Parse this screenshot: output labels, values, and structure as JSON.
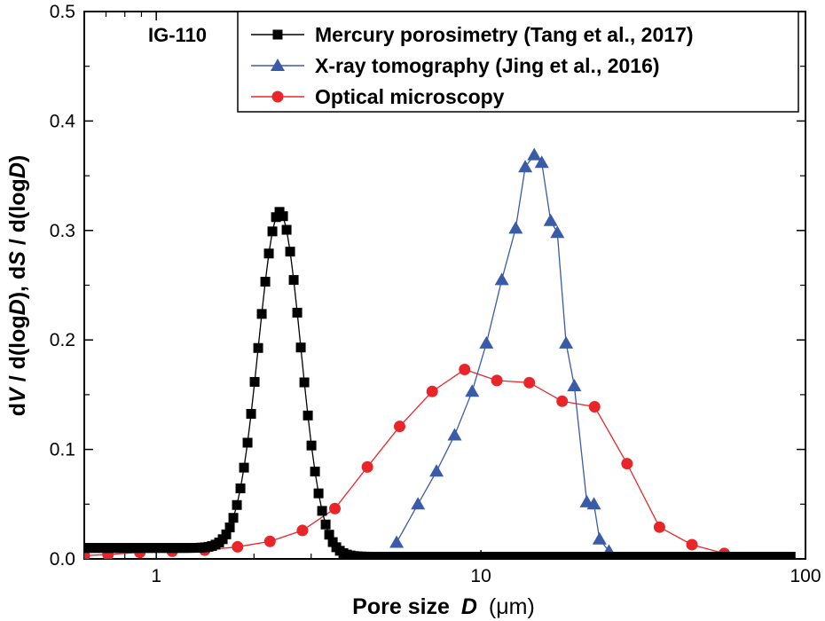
{
  "chart_data": {
    "type": "line",
    "annotation": "IG-110",
    "xlabel": "Pore size",
    "xlabel_var": "D",
    "xlabel_unit": "(μm)",
    "ylabel_parts": [
      "d",
      "V",
      " / d(log",
      "D",
      "),  d",
      "S",
      " / d(log",
      "D",
      ")"
    ],
    "x_scale": "log",
    "xlim": [
      0.6,
      100
    ],
    "ylim": [
      0,
      0.5
    ],
    "x_ticks": [
      1,
      10,
      100
    ],
    "x_tick_labels": [
      "1",
      "10",
      "100"
    ],
    "y_ticks": [
      0,
      0.1,
      0.2,
      0.3,
      0.4,
      0.5
    ],
    "y_tick_labels": [
      "0.0",
      "0.1",
      "0.2",
      "0.3",
      "0.4",
      "0.5"
    ],
    "legend_position": "top-right",
    "series": [
      {
        "name": "Mercury porosimetry (Tang et al., 2017)",
        "marker": "square",
        "color": "#000000",
        "generated": true,
        "n_points": 200,
        "x_range": [
          0.6,
          90
        ],
        "baseline_left": 0.01,
        "baseline_right": 0.002,
        "peak_x": 2.4,
        "peak_y": 0.317,
        "peak_width_decades": 0.065
      },
      {
        "name": "X-ray tomography (Jing et al., 2016)",
        "marker": "triangle",
        "color": "#3a5ba8",
        "points": [
          [
            5.5,
            0.015
          ],
          [
            6.4,
            0.05
          ],
          [
            7.3,
            0.08
          ],
          [
            8.3,
            0.113
          ],
          [
            9.4,
            0.153
          ],
          [
            10.4,
            0.197
          ],
          [
            11.6,
            0.255
          ],
          [
            12.8,
            0.302
          ],
          [
            13.7,
            0.358
          ],
          [
            14.6,
            0.369
          ],
          [
            15.4,
            0.362
          ],
          [
            16.4,
            0.309
          ],
          [
            17.2,
            0.298
          ],
          [
            18.3,
            0.197
          ],
          [
            19.4,
            0.158
          ],
          [
            21.2,
            0.052
          ],
          [
            22.3,
            0.05
          ],
          [
            23.2,
            0.018
          ],
          [
            24.8,
            0.007
          ]
        ]
      },
      {
        "name": "Optical microscopy",
        "marker": "circle",
        "color": "#e8262a",
        "points": [
          [
            0.6,
            0.003
          ],
          [
            0.71,
            0.004
          ],
          [
            0.89,
            0.006
          ],
          [
            1.12,
            0.007
          ],
          [
            1.41,
            0.008
          ],
          [
            1.78,
            0.011
          ],
          [
            2.24,
            0.016
          ],
          [
            2.82,
            0.026
          ],
          [
            3.55,
            0.046
          ],
          [
            4.47,
            0.084
          ],
          [
            5.62,
            0.121
          ],
          [
            7.08,
            0.153
          ],
          [
            8.91,
            0.173
          ],
          [
            11.2,
            0.163
          ],
          [
            14.1,
            0.161
          ],
          [
            17.8,
            0.144
          ],
          [
            22.4,
            0.139
          ],
          [
            28.2,
            0.087
          ],
          [
            35.5,
            0.029
          ],
          [
            44.7,
            0.013
          ],
          [
            56.2,
            0.005
          ],
          [
            70.8,
            0.0
          ],
          [
            89.1,
            0.0
          ]
        ]
      }
    ]
  }
}
